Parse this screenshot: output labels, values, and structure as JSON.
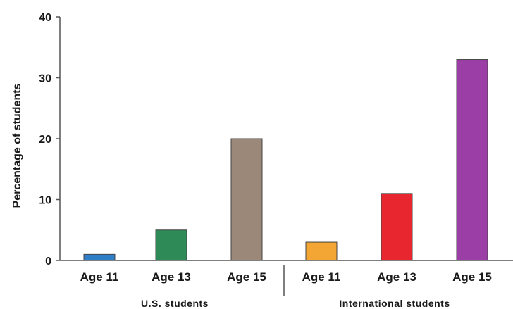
{
  "chart_data": {
    "type": "bar",
    "title": "",
    "xlabel": "",
    "ylabel": "Percentage of students",
    "ylim": [
      0,
      40
    ],
    "yticks": [
      0,
      10,
      20,
      30,
      40
    ],
    "grid": false,
    "legend": "none",
    "categories": [
      "Age 11",
      "Age 13",
      "Age 15",
      "Age 11",
      "Age 13",
      "Age 15"
    ],
    "values": [
      1,
      5,
      20,
      3,
      11,
      33
    ],
    "colors": [
      "#2f7fc8",
      "#2e8b57",
      "#9c8878",
      "#f3a634",
      "#e8262f",
      "#9b3fa6"
    ],
    "groups": [
      {
        "label": "U.S. students",
        "members": [
          0,
          1,
          2
        ]
      },
      {
        "label": "International students",
        "members": [
          3,
          4,
          5
        ]
      }
    ]
  }
}
